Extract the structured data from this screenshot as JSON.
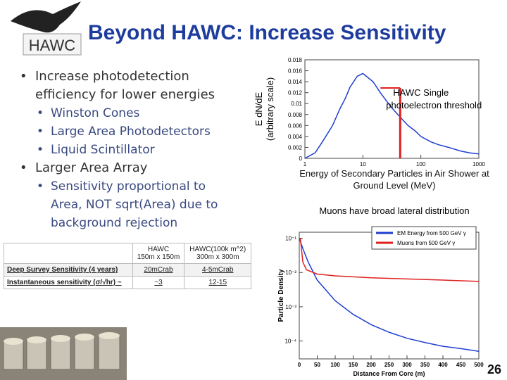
{
  "header": {
    "title": "Beyond HAWC: Increase Sensitivity",
    "logo_text": "HAWC"
  },
  "bullets": [
    {
      "text": "Increase photodetection efficiency for lower energies",
      "sub": [
        "Winston Cones",
        "Large Area Photodetectors",
        "Liquid Scintillator"
      ]
    },
    {
      "text": "Larger Area Array",
      "sub": [
        "Sensitivity proportional to Area, NOT sqrt(Area) due to background rejection"
      ]
    }
  ],
  "table": {
    "header": [
      [
        "",
        ""
      ],
      [
        "HAWC",
        "150m x 150m"
      ],
      [
        "HAWC(100k m^2)",
        "300m x 300m"
      ]
    ],
    "rows": [
      [
        "Deep Survey Sensitivity (4 years)",
        "20mCrab",
        "4-5mCrab"
      ],
      [
        "Instantaneous sensitivity (σ/√hr) ~",
        "~3",
        "12-15"
      ]
    ]
  },
  "plots": [
    {
      "type": "line",
      "ylabel": [
        "E dN/dE",
        "(arbitrary scale)"
      ],
      "xlabel": "Energy of Secondary Particles in Air Shower at Ground Level (MeV)",
      "xlog": true,
      "ylog": false,
      "xlim": [
        1,
        1000
      ],
      "ylim": [
        0,
        0.018
      ],
      "xticks": [
        1,
        10,
        100,
        1000
      ],
      "yticks": [
        0,
        0.002,
        0.004,
        0.006,
        0.008,
        0.01,
        0.012,
        0.014,
        0.016,
        0.018
      ],
      "series": [
        {
          "color": "#1f3fd0",
          "x": [
            1,
            1.5,
            2,
            3,
            4,
            5,
            6,
            8,
            10,
            15,
            20,
            30,
            40,
            60,
            80,
            100,
            150,
            200,
            300,
            500,
            700,
            1000
          ],
          "values": [
            0,
            0.001,
            0.003,
            0.006,
            0.009,
            0.011,
            0.013,
            0.015,
            0.0155,
            0.014,
            0.012,
            0.0095,
            0.008,
            0.006,
            0.005,
            0.004,
            0.003,
            0.0025,
            0.002,
            0.0013,
            0.001,
            0.0008
          ]
        }
      ],
      "threshold": {
        "lines": [
          "HAWC Single",
          "photoelectron threshold"
        ],
        "x": 44,
        "color": "#e02020"
      }
    },
    {
      "type": "line",
      "annotation": "Muons have broad lateral distribution",
      "ylabel": [
        "Particle Density"
      ],
      "xlabel": "Distance From Core (m)",
      "xlog": false,
      "ylog": true,
      "xlim": [
        0,
        500
      ],
      "ylim": [
        3e-05,
        0.15
      ],
      "xticks": [
        0,
        50,
        100,
        150,
        200,
        250,
        300,
        350,
        400,
        450,
        500
      ],
      "yticks": [
        {
          "value": 0.1,
          "label": "10⁻¹"
        },
        {
          "value": 0.01,
          "label": "10⁻²"
        },
        {
          "value": 0.001,
          "label": "10⁻³"
        },
        {
          "value": 0.0001,
          "label": "10⁻⁴"
        }
      ],
      "legend": "upper right",
      "series": [
        {
          "name": "EM Energy from 500 GeV γ",
          "color": "#1f3fd0",
          "x": [
            0,
            10,
            25,
            50,
            75,
            100,
            150,
            200,
            250,
            300,
            350,
            400,
            450,
            500
          ],
          "values": [
            0.1,
            0.05,
            0.02,
            0.006,
            0.003,
            0.0015,
            0.0006,
            0.0003,
            0.00018,
            0.00012,
            9e-05,
            7e-05,
            6e-05,
            5e-05
          ]
        },
        {
          "name": "Muons from 500 GeV γ",
          "color": "#e02020",
          "x": [
            3,
            10,
            20,
            50,
            100,
            200,
            300,
            400,
            500
          ],
          "values": [
            0.1,
            0.02,
            0.012,
            0.009,
            0.008,
            0.007,
            0.0065,
            0.006,
            0.0055
          ]
        }
      ]
    }
  ],
  "page_number": "26"
}
